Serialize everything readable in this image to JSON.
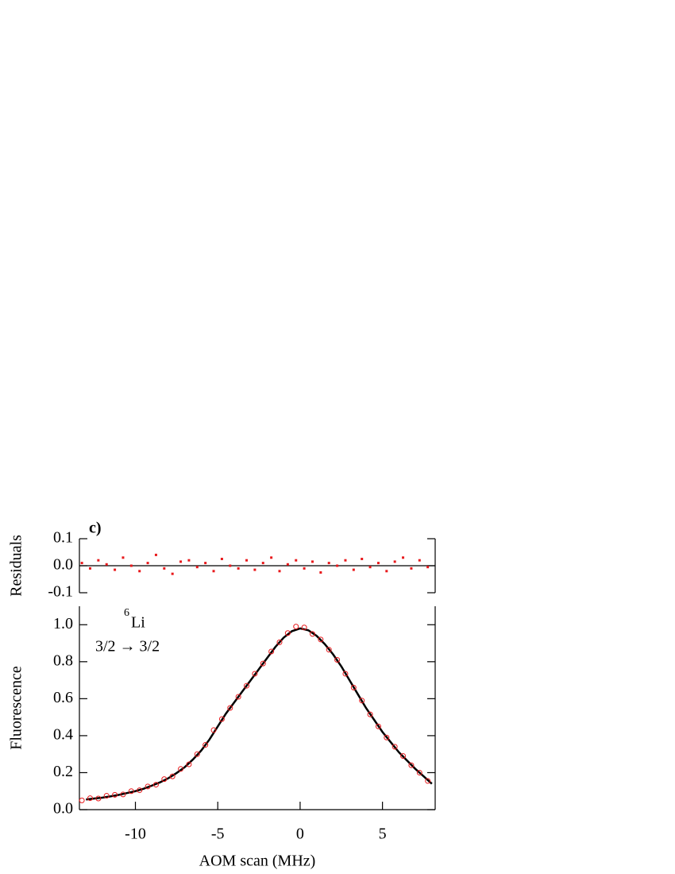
{
  "chart_data": [
    {
      "type": "scatter",
      "label": "c)",
      "ylabel": "Residuals",
      "color": "#e8191c",
      "marker": "square",
      "xlim": [
        -13.4,
        8.2
      ],
      "ylim": [
        -0.1,
        0.1
      ],
      "yticks": [
        -0.1,
        {
          "value": 0,
          "label": "0.0"
        },
        0.1
      ],
      "zero_line": true,
      "x": [
        -13.25,
        -12.75,
        -12.25,
        -11.75,
        -11.25,
        -10.75,
        -10.25,
        -9.75,
        -9.25,
        -8.75,
        -8.25,
        -7.75,
        -7.25,
        -6.75,
        -6.25,
        -5.75,
        -5.25,
        -4.75,
        -4.25,
        -3.75,
        -3.25,
        -2.75,
        -2.25,
        -1.75,
        -1.25,
        -0.75,
        -0.25,
        0.25,
        0.75,
        1.25,
        1.75,
        2.25,
        2.75,
        3.25,
        3.75,
        4.25,
        4.75,
        5.25,
        5.75,
        6.25,
        6.75,
        7.25,
        7.75
      ],
      "values": [
        0.01,
        -0.01,
        0.02,
        0.005,
        -0.015,
        0.03,
        0.0,
        -0.02,
        0.01,
        0.04,
        -0.01,
        -0.03,
        0.015,
        0.02,
        -0.005,
        0.01,
        -0.02,
        0.025,
        0.0,
        -0.01,
        0.02,
        -0.015,
        0.01,
        0.03,
        -0.02,
        0.005,
        0.02,
        -0.01,
        0.015,
        -0.025,
        0.01,
        0.0,
        0.02,
        -0.015,
        0.025,
        -0.005,
        0.01,
        -0.02,
        0.015,
        0.03,
        -0.01,
        0.02,
        -0.005
      ]
    },
    {
      "type": "scatter",
      "ylabel": "Fluorescence",
      "xlabel": "AOM scan (MHz)",
      "color": "#e8191c",
      "marker": "open-circle",
      "annotation": {
        "superscript": "6",
        "text": "Li",
        "transition": "3/2 → 3/2"
      },
      "xlim": [
        -13.4,
        8.2
      ],
      "xticks": [
        -10,
        -5,
        0,
        5
      ],
      "ylim": [
        0,
        1.1
      ],
      "yticks": [
        {
          "value": 0,
          "label": "0.0"
        },
        0.2,
        0.4,
        0.6,
        0.8,
        {
          "value": 1,
          "label": "1.0"
        }
      ],
      "x": [
        -13.25,
        -12.75,
        -12.25,
        -11.75,
        -11.25,
        -10.75,
        -10.25,
        -9.75,
        -9.25,
        -8.75,
        -8.25,
        -7.75,
        -7.25,
        -6.75,
        -6.25,
        -5.75,
        -5.25,
        -4.75,
        -4.25,
        -3.75,
        -3.25,
        -2.75,
        -2.25,
        -1.75,
        -1.25,
        -0.75,
        -0.25,
        0.25,
        0.75,
        1.25,
        1.75,
        2.25,
        2.75,
        3.25,
        3.75,
        4.25,
        4.75,
        5.25,
        5.75,
        6.25,
        6.75,
        7.25,
        7.75
      ],
      "values": [
        0.05,
        0.062,
        0.06,
        0.075,
        0.08,
        0.082,
        0.1,
        0.105,
        0.125,
        0.135,
        0.165,
        0.18,
        0.22,
        0.245,
        0.3,
        0.35,
        0.43,
        0.49,
        0.55,
        0.61,
        0.67,
        0.735,
        0.79,
        0.855,
        0.905,
        0.955,
        0.99,
        0.985,
        0.95,
        0.92,
        0.865,
        0.81,
        0.735,
        0.66,
        0.59,
        0.515,
        0.45,
        0.39,
        0.34,
        0.29,
        0.24,
        0.2,
        0.155
      ],
      "fit": {
        "type": "line",
        "color": "#000000",
        "x": [
          -13,
          -12.5,
          -12,
          -11.5,
          -11,
          -10.5,
          -10,
          -9.5,
          -9,
          -8.5,
          -8,
          -7.5,
          -7,
          -6.5,
          -6,
          -5.5,
          -5,
          -4.5,
          -4,
          -3.5,
          -3,
          -2.5,
          -2,
          -1.5,
          -1,
          -0.5,
          0,
          0.5,
          1,
          1.5,
          2,
          2.5,
          3,
          3.5,
          4,
          4.5,
          5,
          5.5,
          6,
          6.5,
          7,
          7.5,
          8
        ],
        "values": [
          0.055,
          0.06,
          0.065,
          0.072,
          0.08,
          0.09,
          0.1,
          0.113,
          0.13,
          0.148,
          0.17,
          0.198,
          0.23,
          0.272,
          0.32,
          0.38,
          0.45,
          0.52,
          0.58,
          0.64,
          0.7,
          0.76,
          0.82,
          0.88,
          0.93,
          0.965,
          0.98,
          0.97,
          0.94,
          0.895,
          0.84,
          0.775,
          0.7,
          0.625,
          0.55,
          0.485,
          0.42,
          0.365,
          0.31,
          0.265,
          0.22,
          0.18,
          0.14
        ]
      }
    }
  ]
}
